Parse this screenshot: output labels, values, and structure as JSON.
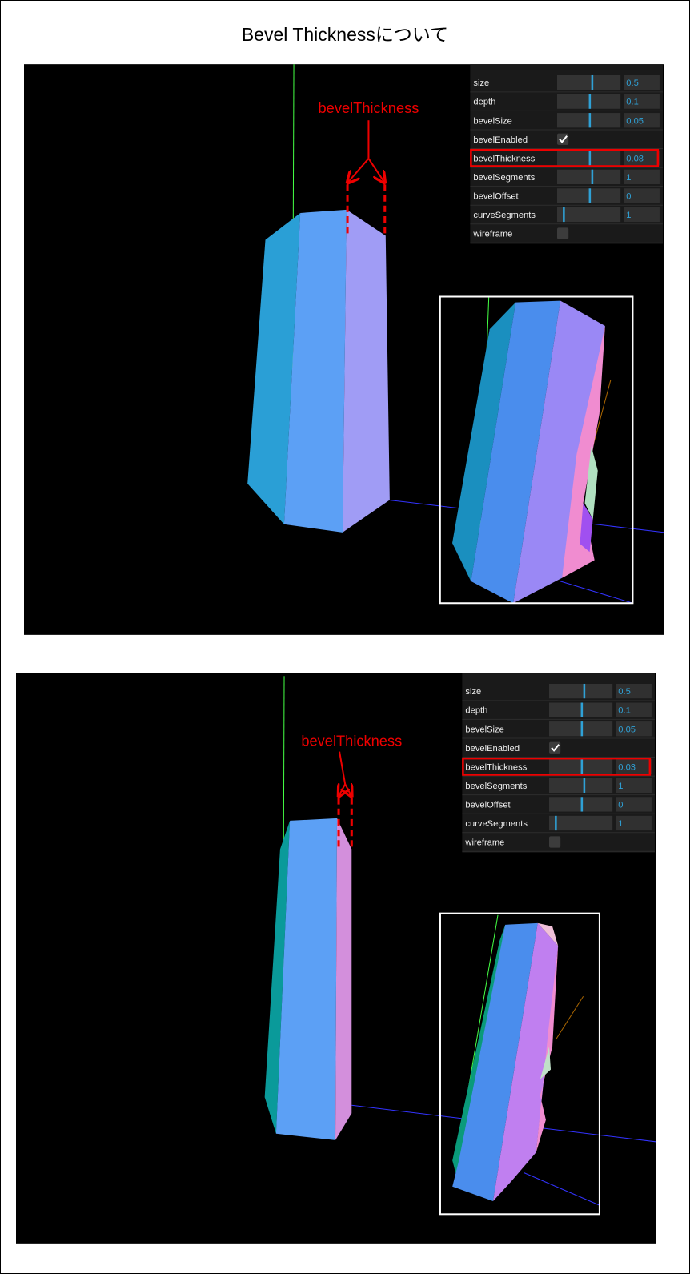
{
  "title": "Bevel Thicknessについて",
  "scenes": [
    {
      "annotation": "bevelThickness",
      "controls": [
        {
          "label": "size",
          "value": 0.5
        },
        {
          "label": "depth",
          "value": 0.1
        },
        {
          "label": "bevelSize",
          "value": 0.05
        },
        {
          "label": "bevelEnabled",
          "checked": true
        },
        {
          "label": "bevelThickness",
          "value": 0.08
        },
        {
          "label": "bevelSegments",
          "value": 1
        },
        {
          "label": "bevelOffset",
          "value": 0
        },
        {
          "label": "curveSegments",
          "value": 1
        },
        {
          "label": "wireframe",
          "checked": false
        }
      ]
    },
    {
      "annotation": "bevelThickness",
      "controls": [
        {
          "label": "size",
          "value": 0.5
        },
        {
          "label": "depth",
          "value": 0.1
        },
        {
          "label": "bevelSize",
          "value": 0.05
        },
        {
          "label": "bevelEnabled",
          "checked": true
        },
        {
          "label": "bevelThickness",
          "value": 0.03
        },
        {
          "label": "bevelSegments",
          "value": 1
        },
        {
          "label": "bevelOffset",
          "value": 0
        },
        {
          "label": "curveSegments",
          "value": 1
        },
        {
          "label": "wireframe",
          "checked": false
        }
      ]
    }
  ]
}
